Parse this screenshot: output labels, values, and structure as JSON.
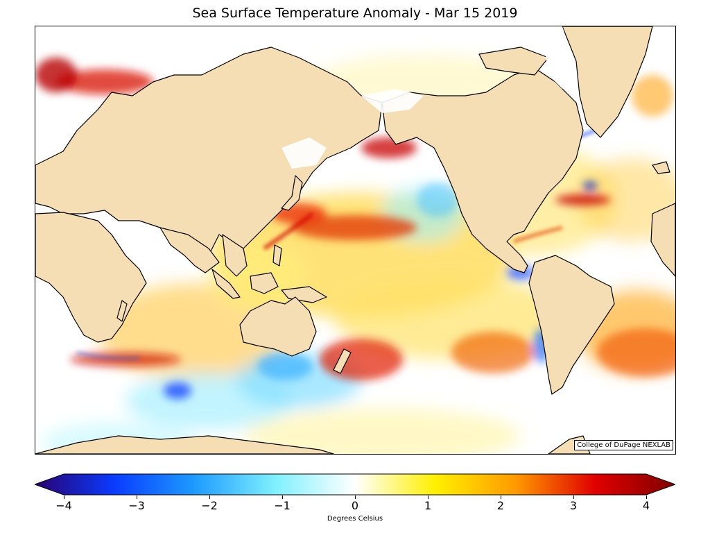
{
  "title": "Sea Surface Temperature Anomaly - Mar 15 2019",
  "credit": "College of DuPage NEXLAB",
  "colorbar": {
    "label": "Degrees Celsius",
    "min": -4,
    "max": 4,
    "ticks": [
      "−4",
      "−3",
      "−2",
      "−1",
      "0",
      "1",
      "2",
      "3",
      "4"
    ],
    "colors": [
      "#2a0070",
      "#0a3cff",
      "#1e9bff",
      "#7ff0ff",
      "#ffffff",
      "#fff000",
      "#ff9a00",
      "#e00000",
      "#800000"
    ]
  },
  "map": {
    "land_color": "#f5deb3",
    "projection": "Mercator, Pacific-centered"
  }
}
